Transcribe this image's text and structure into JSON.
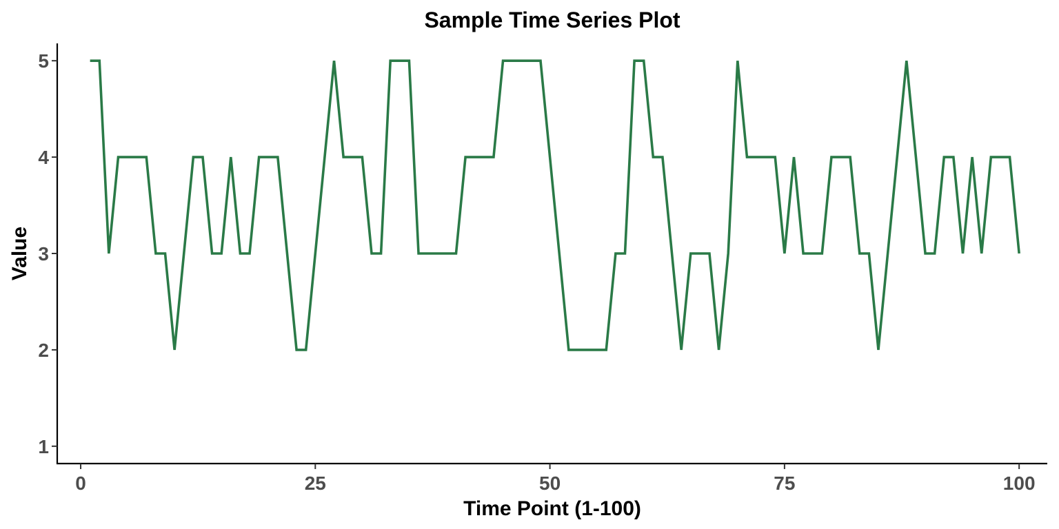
{
  "chart_data": {
    "type": "line",
    "title": "Sample Time Series Plot",
    "xlabel": "Time Point (1-100)",
    "ylabel": "Value",
    "xlim": [
      -2.5,
      103
    ],
    "ylim": [
      0.82,
      5.18
    ],
    "x_ticks": [
      0,
      25,
      50,
      75,
      100
    ],
    "x_tick_labels": [
      "0",
      "25",
      "50",
      "75",
      "100"
    ],
    "y_ticks": [
      1,
      2,
      3,
      4,
      5
    ],
    "y_tick_labels": [
      "1",
      "2",
      "3",
      "4",
      "5"
    ],
    "grid": false,
    "legend": "none",
    "series": [
      {
        "color": "#2a7a47",
        "x": [
          1,
          2,
          3,
          4,
          5,
          6,
          7,
          8,
          9,
          10,
          11,
          12,
          13,
          14,
          15,
          16,
          17,
          18,
          19,
          20,
          21,
          22,
          23,
          24,
          25,
          26,
          27,
          28,
          29,
          30,
          31,
          32,
          33,
          34,
          35,
          36,
          37,
          38,
          39,
          40,
          41,
          42,
          43,
          44,
          45,
          46,
          47,
          48,
          49,
          50,
          51,
          52,
          53,
          54,
          55,
          56,
          57,
          58,
          59,
          60,
          61,
          62,
          63,
          64,
          65,
          66,
          67,
          68,
          69,
          70,
          71,
          72,
          73,
          74,
          75,
          76,
          77,
          78,
          79,
          80,
          81,
          82,
          83,
          84,
          85,
          86,
          87,
          88,
          89,
          90,
          91,
          92,
          93,
          94,
          95,
          96,
          97,
          98,
          99,
          100
        ],
        "values": [
          5,
          5,
          3,
          4,
          4,
          4,
          4,
          3,
          3,
          2,
          3,
          4,
          4,
          3,
          3,
          4,
          3,
          3,
          4,
          4,
          4,
          3,
          2,
          2,
          3,
          4,
          5,
          4,
          4,
          4,
          3,
          3,
          5,
          5,
          5,
          3,
          3,
          3,
          3,
          3,
          4,
          4,
          4,
          4,
          5,
          5,
          5,
          5,
          5,
          4,
          3,
          2,
          2,
          2,
          2,
          2,
          3,
          3,
          5,
          5,
          4,
          4,
          3,
          2,
          3,
          3,
          3,
          2,
          3,
          5,
          4,
          4,
          4,
          4,
          3,
          4,
          3,
          3,
          3,
          4,
          4,
          4,
          3,
          3,
          2,
          3,
          4,
          5,
          4,
          3,
          3,
          4,
          4,
          3,
          4,
          3,
          4,
          4,
          4,
          3
        ]
      }
    ]
  }
}
